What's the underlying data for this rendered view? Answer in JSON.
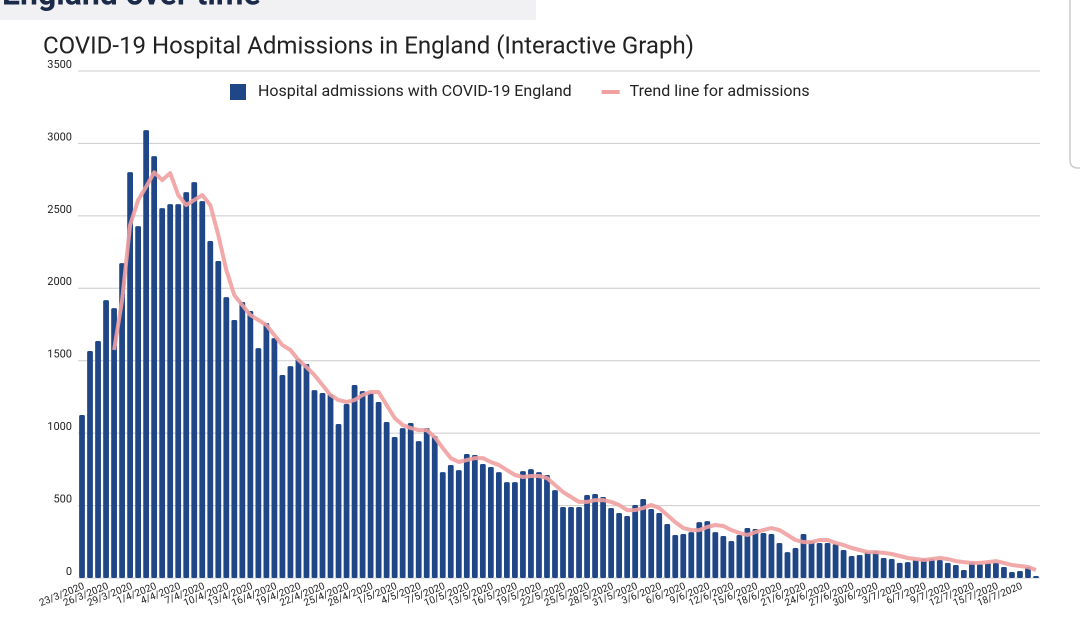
{
  "page_heading": "England over time",
  "chart_data": {
    "type": "bar",
    "title": "COVID-19 Hospital Admissions in England (Interactive Graph)",
    "categories": [
      "23/3/2020",
      null,
      null,
      "26/3/2020",
      null,
      null,
      "29/3/2020",
      null,
      null,
      "1/4/2020",
      null,
      null,
      "4/4/2020",
      null,
      null,
      "7/4/2020",
      null,
      null,
      "10/4/2020",
      null,
      null,
      "13/4/2020",
      null,
      null,
      "16/4/2020",
      null,
      null,
      "19/4/2020",
      null,
      null,
      "22/4/2020",
      null,
      null,
      "25/4/2020",
      null,
      null,
      "28/4/2020",
      null,
      null,
      "1/5/2020",
      null,
      null,
      "4/5/2020",
      null,
      null,
      "7/5/2020",
      null,
      null,
      "10/5/2020",
      null,
      null,
      "13/5/2020",
      null,
      null,
      "16/5/2020",
      null,
      null,
      "19/5/2020",
      null,
      null,
      "22/5/2020",
      null,
      null,
      "25/5/2020",
      null,
      null,
      "28/5/2020",
      null,
      null,
      "31/5/2020",
      null,
      null,
      "3/6/2020",
      null,
      null,
      "6/6/2020",
      null,
      null,
      "9/6/2020",
      null,
      null,
      "12/6/2020",
      null,
      null,
      "15/6/2020",
      null,
      null,
      "18/6/2020",
      null,
      null,
      "21/6/2020",
      null,
      null,
      "24/6/2020",
      null,
      null,
      "27/6/2020",
      null,
      null,
      "30/6/2020",
      null,
      null,
      "3/7/2020",
      null,
      null,
      "6/7/2020",
      null,
      null,
      "9/7/2020",
      null,
      null,
      "12/7/2020",
      null,
      null,
      "15/7/2020",
      null,
      null,
      "18/7/2020",
      null,
      null
    ],
    "series": [
      {
        "name": "Hospital admissions with COVID-19 England",
        "color": "#1f4788",
        "type": "bar",
        "values": [
          1125,
          1567,
          1636,
          1918,
          1863,
          2174,
          2802,
          2429,
          3092,
          2912,
          2553,
          2581,
          2581,
          2664,
          2733,
          2602,
          2326,
          2188,
          1939,
          1781,
          1905,
          1843,
          1587,
          1760,
          1656,
          1401,
          1463,
          1511,
          1477,
          1297,
          1277,
          1270,
          1063,
          1201,
          1332,
          1290,
          1277,
          1215,
          1077,
          973,
          1035,
          1070,
          945,
          1035,
          980,
          731,
          780,
          745,
          856,
          849,
          787,
          766,
          731,
          662,
          662,
          738,
          752,
          731,
          711,
          607,
          490,
          490,
          490,
          573,
          580,
          559,
          483,
          449,
          428,
          504,
          545,
          476,
          449,
          373,
          297,
          304,
          317,
          386,
          393,
          317,
          290,
          255,
          297,
          345,
          338,
          311,
          304,
          242,
          179,
          207,
          304,
          255,
          242,
          242,
          235,
          193,
          152,
          159,
          179,
          186,
          138,
          131,
          104,
          110,
          124,
          131,
          131,
          124,
          104,
          90,
          55,
          110,
          97,
          104,
          104,
          76,
          41,
          48,
          76,
          14
        ]
      },
      {
        "name": "Trend line for admissions",
        "color": "#f0a0a0",
        "type": "line",
        "values": [
          null,
          null,
          null,
          null,
          1575,
          1918,
          2436,
          2609,
          2700,
          2800,
          2747,
          2795,
          2643,
          2574,
          2609,
          2643,
          2574,
          2367,
          2126,
          1953,
          1884,
          1815,
          1781,
          1746,
          1677,
          1608,
          1574,
          1505,
          1456,
          1401,
          1332,
          1263,
          1228,
          1215,
          1228,
          1263,
          1284,
          1284,
          1194,
          1104,
          1056,
          1035,
          1021,
          1021,
          973,
          897,
          828,
          801,
          814,
          828,
          828,
          801,
          780,
          745,
          711,
          697,
          704,
          704,
          690,
          642,
          594,
          559,
          525,
          525,
          538,
          538,
          525,
          504,
          469,
          469,
          483,
          504,
          483,
          435,
          386,
          345,
          331,
          331,
          352,
          366,
          359,
          331,
          311,
          297,
          317,
          331,
          345,
          331,
          297,
          262,
          248,
          248,
          262,
          262,
          242,
          228,
          207,
          193,
          179,
          179,
          173,
          166,
          152,
          138,
          131,
          124,
          131,
          138,
          131,
          117,
          110,
          104,
          104,
          110,
          117,
          104,
          90,
          83,
          76,
          55
        ]
      }
    ],
    "ylim": [
      0,
      3500
    ],
    "yticks": [
      0,
      500,
      1000,
      1500,
      2000,
      2500,
      3000,
      3500
    ],
    "grid": true,
    "legend": "top"
  }
}
